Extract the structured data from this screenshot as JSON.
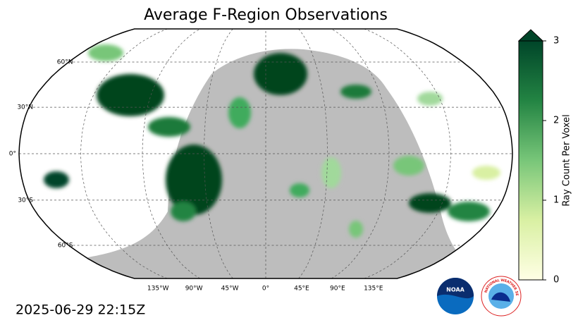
{
  "map": {
    "title": "Average F-Region Observations",
    "lat_labels": [
      {
        "value": 60,
        "label": "60°N"
      },
      {
        "value": 30,
        "label": "30°N"
      },
      {
        "value": 0,
        "label": "0°"
      },
      {
        "value": -30,
        "label": "30°S"
      },
      {
        "value": -60,
        "label": "60°S"
      }
    ],
    "lon_labels": [
      {
        "value": -135,
        "label": "135°W"
      },
      {
        "value": -90,
        "label": "90°W"
      },
      {
        "value": -45,
        "label": "45°W"
      },
      {
        "value": 0,
        "label": "0°"
      },
      {
        "value": 45,
        "label": "45°E"
      },
      {
        "value": 90,
        "label": "90°E"
      },
      {
        "value": 135,
        "label": "135°E"
      }
    ],
    "colorbar": {
      "label": "Ray Count Per Voxel",
      "lim": [
        0,
        3
      ],
      "ticks": [
        0,
        1,
        2,
        3
      ],
      "extend": "max",
      "colors": [
        "#ffffe5",
        "#d9f0a3",
        "#78c679",
        "#238443",
        "#004529"
      ]
    },
    "timestamp": "2025-06-29 22:15Z",
    "logos": {
      "noaa": "NOAA",
      "nws": "NATIONAL WEATHER SERVICE"
    }
  }
}
